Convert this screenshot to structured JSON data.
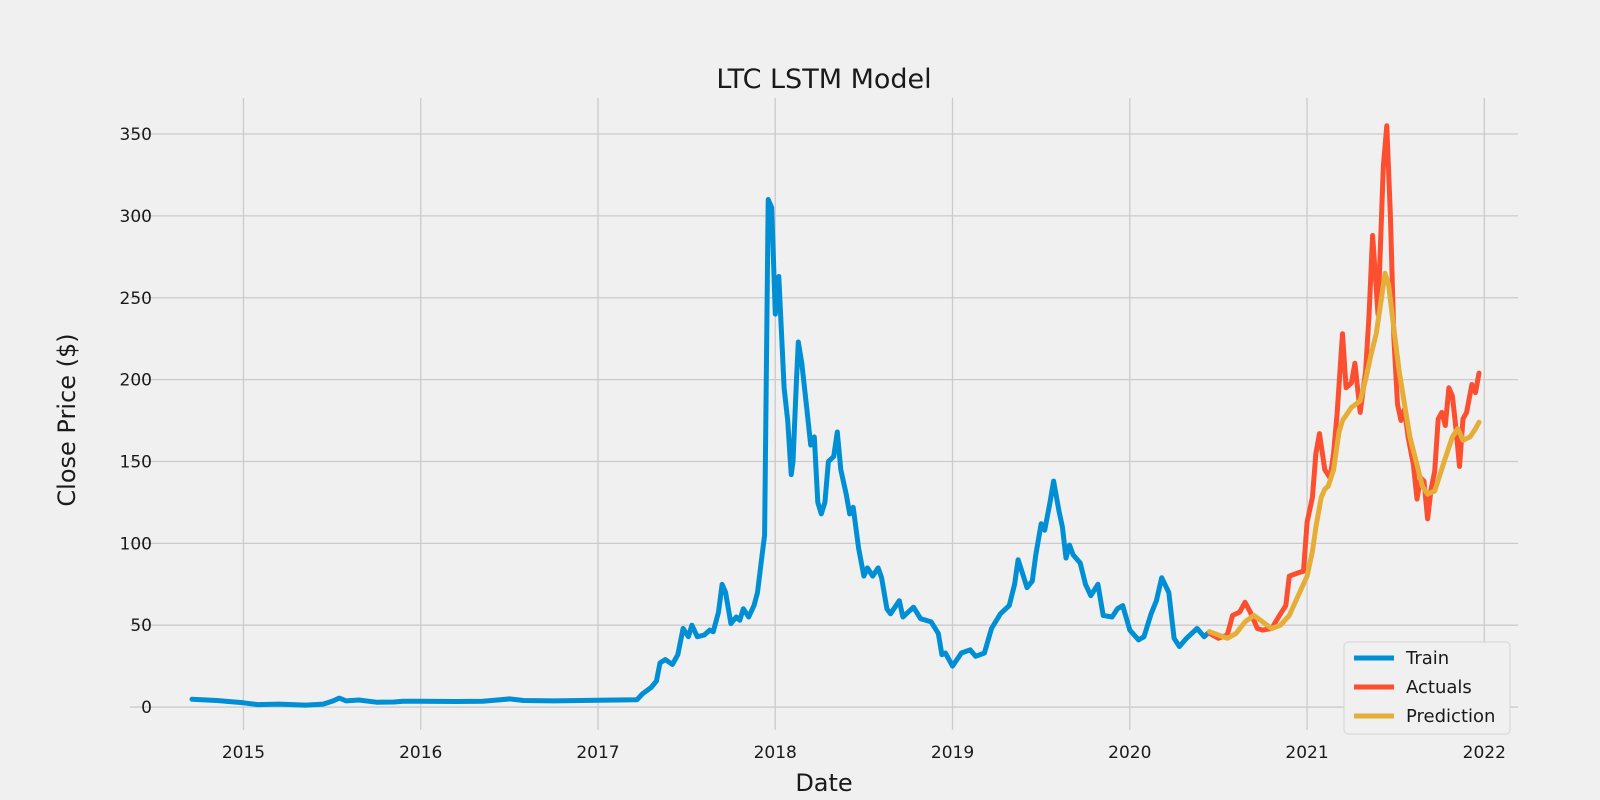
{
  "chart_data": {
    "type": "line",
    "title": "LTC LSTM Model",
    "xlabel": "Date",
    "ylabel": "Close Price ($)",
    "xlim": [
      2014.36,
      2022.19
    ],
    "ylim": [
      -14,
      372
    ],
    "x_ticks": [
      2015,
      2016,
      2017,
      2018,
      2019,
      2020,
      2021,
      2022
    ],
    "x_tick_labels": [
      "2015",
      "2016",
      "2017",
      "2018",
      "2019",
      "2020",
      "2021",
      "2022"
    ],
    "y_ticks": [
      0,
      50,
      100,
      150,
      200,
      250,
      300,
      350
    ],
    "grid": true,
    "legend_position": "bottom-right",
    "series": [
      {
        "name": "Train",
        "color": "#008fd5",
        "points": [
          [
            2014.71,
            4.8
          ],
          [
            2014.85,
            4.0
          ],
          [
            2015.0,
            2.6
          ],
          [
            2015.08,
            1.5
          ],
          [
            2015.2,
            1.8
          ],
          [
            2015.35,
            1.2
          ],
          [
            2015.45,
            1.8
          ],
          [
            2015.5,
            3.5
          ],
          [
            2015.54,
            5.5
          ],
          [
            2015.58,
            3.8
          ],
          [
            2015.65,
            4.3
          ],
          [
            2015.75,
            3.0
          ],
          [
            2015.85,
            3.1
          ],
          [
            2015.9,
            3.6
          ],
          [
            2016.0,
            3.6
          ],
          [
            2016.2,
            3.4
          ],
          [
            2016.35,
            3.6
          ],
          [
            2016.45,
            4.5
          ],
          [
            2016.5,
            5.0
          ],
          [
            2016.58,
            4.0
          ],
          [
            2016.75,
            3.8
          ],
          [
            2017.0,
            4.2
          ],
          [
            2017.22,
            4.5
          ],
          [
            2017.25,
            8.0
          ],
          [
            2017.3,
            12.0
          ],
          [
            2017.33,
            16.0
          ],
          [
            2017.35,
            27.0
          ],
          [
            2017.38,
            29.0
          ],
          [
            2017.42,
            26.0
          ],
          [
            2017.45,
            32.0
          ],
          [
            2017.48,
            48.0
          ],
          [
            2017.51,
            43.0
          ],
          [
            2017.53,
            50.0
          ],
          [
            2017.56,
            43.0
          ],
          [
            2017.6,
            44.0
          ],
          [
            2017.63,
            47.0
          ],
          [
            2017.65,
            46.0
          ],
          [
            2017.68,
            58.0
          ],
          [
            2017.7,
            75.0
          ],
          [
            2017.72,
            70.0
          ],
          [
            2017.75,
            51.0
          ],
          [
            2017.78,
            55.0
          ],
          [
            2017.8,
            53.0
          ],
          [
            2017.82,
            60.0
          ],
          [
            2017.85,
            55.0
          ],
          [
            2017.88,
            62.0
          ],
          [
            2017.9,
            70.0
          ],
          [
            2017.92,
            88.0
          ],
          [
            2017.94,
            105.0
          ],
          [
            2017.96,
            310.0
          ],
          [
            2017.98,
            305.0
          ],
          [
            2018.0,
            240.0
          ],
          [
            2018.02,
            263.0
          ],
          [
            2018.05,
            195.0
          ],
          [
            2018.07,
            175.0
          ],
          [
            2018.09,
            142.0
          ],
          [
            2018.1,
            150.0
          ],
          [
            2018.12,
            200.0
          ],
          [
            2018.13,
            223.0
          ],
          [
            2018.15,
            210.0
          ],
          [
            2018.18,
            180.0
          ],
          [
            2018.2,
            160.0
          ],
          [
            2018.22,
            165.0
          ],
          [
            2018.24,
            125.0
          ],
          [
            2018.26,
            118.0
          ],
          [
            2018.28,
            125.0
          ],
          [
            2018.3,
            150.0
          ],
          [
            2018.33,
            153.0
          ],
          [
            2018.35,
            168.0
          ],
          [
            2018.37,
            145.0
          ],
          [
            2018.4,
            130.0
          ],
          [
            2018.42,
            118.0
          ],
          [
            2018.44,
            122.0
          ],
          [
            2018.47,
            97.0
          ],
          [
            2018.5,
            80.0
          ],
          [
            2018.52,
            85.0
          ],
          [
            2018.55,
            80.0
          ],
          [
            2018.58,
            85.0
          ],
          [
            2018.6,
            79.0
          ],
          [
            2018.63,
            60.0
          ],
          [
            2018.65,
            57.0
          ],
          [
            2018.7,
            65.0
          ],
          [
            2018.72,
            55.0
          ],
          [
            2018.75,
            58.0
          ],
          [
            2018.78,
            61.0
          ],
          [
            2018.82,
            54.0
          ],
          [
            2018.88,
            52.0
          ],
          [
            2018.92,
            45.0
          ],
          [
            2018.94,
            32.0
          ],
          [
            2018.96,
            33.0
          ],
          [
            2019.0,
            25.0
          ],
          [
            2019.05,
            33.0
          ],
          [
            2019.1,
            35.0
          ],
          [
            2019.13,
            31.0
          ],
          [
            2019.18,
            33.0
          ],
          [
            2019.22,
            48.0
          ],
          [
            2019.27,
            57.0
          ],
          [
            2019.32,
            62.0
          ],
          [
            2019.35,
            75.0
          ],
          [
            2019.37,
            90.0
          ],
          [
            2019.4,
            80.0
          ],
          [
            2019.42,
            73.0
          ],
          [
            2019.45,
            77.0
          ],
          [
            2019.47,
            93.0
          ],
          [
            2019.5,
            112.0
          ],
          [
            2019.52,
            108.0
          ],
          [
            2019.55,
            125.0
          ],
          [
            2019.57,
            138.0
          ],
          [
            2019.6,
            120.0
          ],
          [
            2019.62,
            110.0
          ],
          [
            2019.64,
            91.0
          ],
          [
            2019.66,
            99.0
          ],
          [
            2019.68,
            93.0
          ],
          [
            2019.72,
            88.0
          ],
          [
            2019.75,
            75.0
          ],
          [
            2019.78,
            68.0
          ],
          [
            2019.82,
            75.0
          ],
          [
            2019.85,
            56.0
          ],
          [
            2019.9,
            55.0
          ],
          [
            2019.93,
            60.0
          ],
          [
            2019.96,
            62.0
          ],
          [
            2020.0,
            47.0
          ],
          [
            2020.05,
            41.0
          ],
          [
            2020.08,
            43.0
          ],
          [
            2020.12,
            57.0
          ],
          [
            2020.15,
            65.0
          ],
          [
            2020.18,
            79.0
          ],
          [
            2020.22,
            70.0
          ],
          [
            2020.25,
            42.0
          ],
          [
            2020.28,
            37.0
          ],
          [
            2020.32,
            42.0
          ],
          [
            2020.38,
            48.0
          ],
          [
            2020.42,
            43.0
          ],
          [
            2020.45,
            46.0
          ]
        ]
      },
      {
        "name": "Actuals",
        "color": "#fc4f30",
        "points": [
          [
            2020.45,
            45.0
          ],
          [
            2020.5,
            42.0
          ],
          [
            2020.55,
            44.0
          ],
          [
            2020.58,
            56.0
          ],
          [
            2020.62,
            58.0
          ],
          [
            2020.65,
            64.0
          ],
          [
            2020.68,
            58.0
          ],
          [
            2020.72,
            48.0
          ],
          [
            2020.75,
            47.0
          ],
          [
            2020.8,
            48.0
          ],
          [
            2020.85,
            57.0
          ],
          [
            2020.88,
            62.0
          ],
          [
            2020.9,
            80.0
          ],
          [
            2020.95,
            82.0
          ],
          [
            2020.98,
            83.0
          ],
          [
            2021.0,
            113.0
          ],
          [
            2021.03,
            128.0
          ],
          [
            2021.05,
            155.0
          ],
          [
            2021.07,
            167.0
          ],
          [
            2021.1,
            145.0
          ],
          [
            2021.13,
            140.0
          ],
          [
            2021.15,
            155.0
          ],
          [
            2021.17,
            180.0
          ],
          [
            2021.2,
            228.0
          ],
          [
            2021.22,
            195.0
          ],
          [
            2021.25,
            198.0
          ],
          [
            2021.27,
            210.0
          ],
          [
            2021.3,
            180.0
          ],
          [
            2021.33,
            205.0
          ],
          [
            2021.35,
            240.0
          ],
          [
            2021.37,
            288.0
          ],
          [
            2021.4,
            240.0
          ],
          [
            2021.43,
            330.0
          ],
          [
            2021.45,
            355.0
          ],
          [
            2021.47,
            300.0
          ],
          [
            2021.49,
            225.0
          ],
          [
            2021.51,
            185.0
          ],
          [
            2021.53,
            175.0
          ],
          [
            2021.55,
            182.0
          ],
          [
            2021.57,
            165.0
          ],
          [
            2021.6,
            148.0
          ],
          [
            2021.62,
            127.0
          ],
          [
            2021.64,
            140.0
          ],
          [
            2021.66,
            138.0
          ],
          [
            2021.68,
            115.0
          ],
          [
            2021.7,
            133.0
          ],
          [
            2021.72,
            144.0
          ],
          [
            2021.74,
            176.0
          ],
          [
            2021.76,
            180.0
          ],
          [
            2021.78,
            172.0
          ],
          [
            2021.8,
            195.0
          ],
          [
            2021.82,
            190.0
          ],
          [
            2021.84,
            170.0
          ],
          [
            2021.86,
            147.0
          ],
          [
            2021.88,
            176.0
          ],
          [
            2021.9,
            180.0
          ],
          [
            2021.93,
            197.0
          ],
          [
            2021.95,
            192.0
          ],
          [
            2021.97,
            204.0
          ]
        ]
      },
      {
        "name": "Prediction",
        "color": "#e5ae38",
        "points": [
          [
            2020.45,
            46.0
          ],
          [
            2020.5,
            44.0
          ],
          [
            2020.55,
            42.0
          ],
          [
            2020.6,
            45.0
          ],
          [
            2020.65,
            52.0
          ],
          [
            2020.7,
            56.0
          ],
          [
            2020.75,
            52.0
          ],
          [
            2020.8,
            48.0
          ],
          [
            2020.85,
            50.0
          ],
          [
            2020.9,
            56.0
          ],
          [
            2020.95,
            68.0
          ],
          [
            2021.0,
            80.0
          ],
          [
            2021.03,
            95.0
          ],
          [
            2021.05,
            110.0
          ],
          [
            2021.08,
            128.0
          ],
          [
            2021.1,
            133.0
          ],
          [
            2021.12,
            135.0
          ],
          [
            2021.15,
            145.0
          ],
          [
            2021.18,
            168.0
          ],
          [
            2021.2,
            175.0
          ],
          [
            2021.25,
            183.0
          ],
          [
            2021.3,
            187.0
          ],
          [
            2021.33,
            200.0
          ],
          [
            2021.36,
            215.0
          ],
          [
            2021.39,
            228.0
          ],
          [
            2021.42,
            250.0
          ],
          [
            2021.44,
            265.0
          ],
          [
            2021.46,
            258.0
          ],
          [
            2021.48,
            240.0
          ],
          [
            2021.5,
            222.0
          ],
          [
            2021.52,
            205.0
          ],
          [
            2021.55,
            185.0
          ],
          [
            2021.58,
            165.0
          ],
          [
            2021.62,
            148.0
          ],
          [
            2021.65,
            135.0
          ],
          [
            2021.68,
            130.0
          ],
          [
            2021.72,
            132.0
          ],
          [
            2021.75,
            142.0
          ],
          [
            2021.78,
            152.0
          ],
          [
            2021.82,
            165.0
          ],
          [
            2021.85,
            170.0
          ],
          [
            2021.88,
            163.0
          ],
          [
            2021.92,
            165.0
          ],
          [
            2021.95,
            170.0
          ],
          [
            2021.97,
            174.0
          ]
        ]
      }
    ]
  }
}
